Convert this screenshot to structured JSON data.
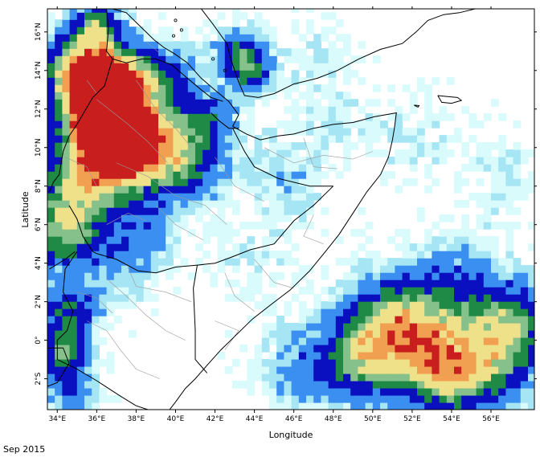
{
  "map": {
    "xlabel": "Longitude",
    "ylabel": "Latitude",
    "lon_range": [
      33.5,
      58.2
    ],
    "lat_range": [
      -3.6,
      17.2
    ],
    "lon_ticks": [
      {
        "value": 34,
        "label": "34°E"
      },
      {
        "value": 36,
        "label": "36°E"
      },
      {
        "value": 38,
        "label": "38°E"
      },
      {
        "value": 40,
        "label": "40°E"
      },
      {
        "value": 42,
        "label": "42°E"
      },
      {
        "value": 44,
        "label": "44°E"
      },
      {
        "value": 46,
        "label": "46°E"
      },
      {
        "value": 48,
        "label": "48°E"
      },
      {
        "value": 50,
        "label": "50°E"
      },
      {
        "value": 52,
        "label": "52°E"
      },
      {
        "value": 54,
        "label": "54°E"
      },
      {
        "value": 56,
        "label": "56°E"
      }
    ],
    "lat_ticks": [
      {
        "value": 16,
        "label": "16°N"
      },
      {
        "value": 14,
        "label": "14°N"
      },
      {
        "value": 12,
        "label": "12°N"
      },
      {
        "value": 10,
        "label": "10°N"
      },
      {
        "value": 8,
        "label": "8°N"
      },
      {
        "value": 6,
        "label": "6°N"
      },
      {
        "value": 4,
        "label": "4°N"
      },
      {
        "value": 2,
        "label": "2°N"
      },
      {
        "value": 0,
        "label": "0°"
      },
      {
        "value": -2,
        "label": "2°S"
      }
    ],
    "colors": {
      "ocean": "#ffffff",
      "very_light": "#d9fbfc",
      "light": "#a6e5f4",
      "mid": "#3a8ff0",
      "dark": "#0a10c0",
      "green": "#1f8a46",
      "lightgreen": "#86c08a",
      "yellow": "#efe08a",
      "orange": "#f0a050",
      "red": "#c81e1e",
      "border": "#000000",
      "admin": "#9a9a9a"
    }
  },
  "caption": "Sep 2015"
}
